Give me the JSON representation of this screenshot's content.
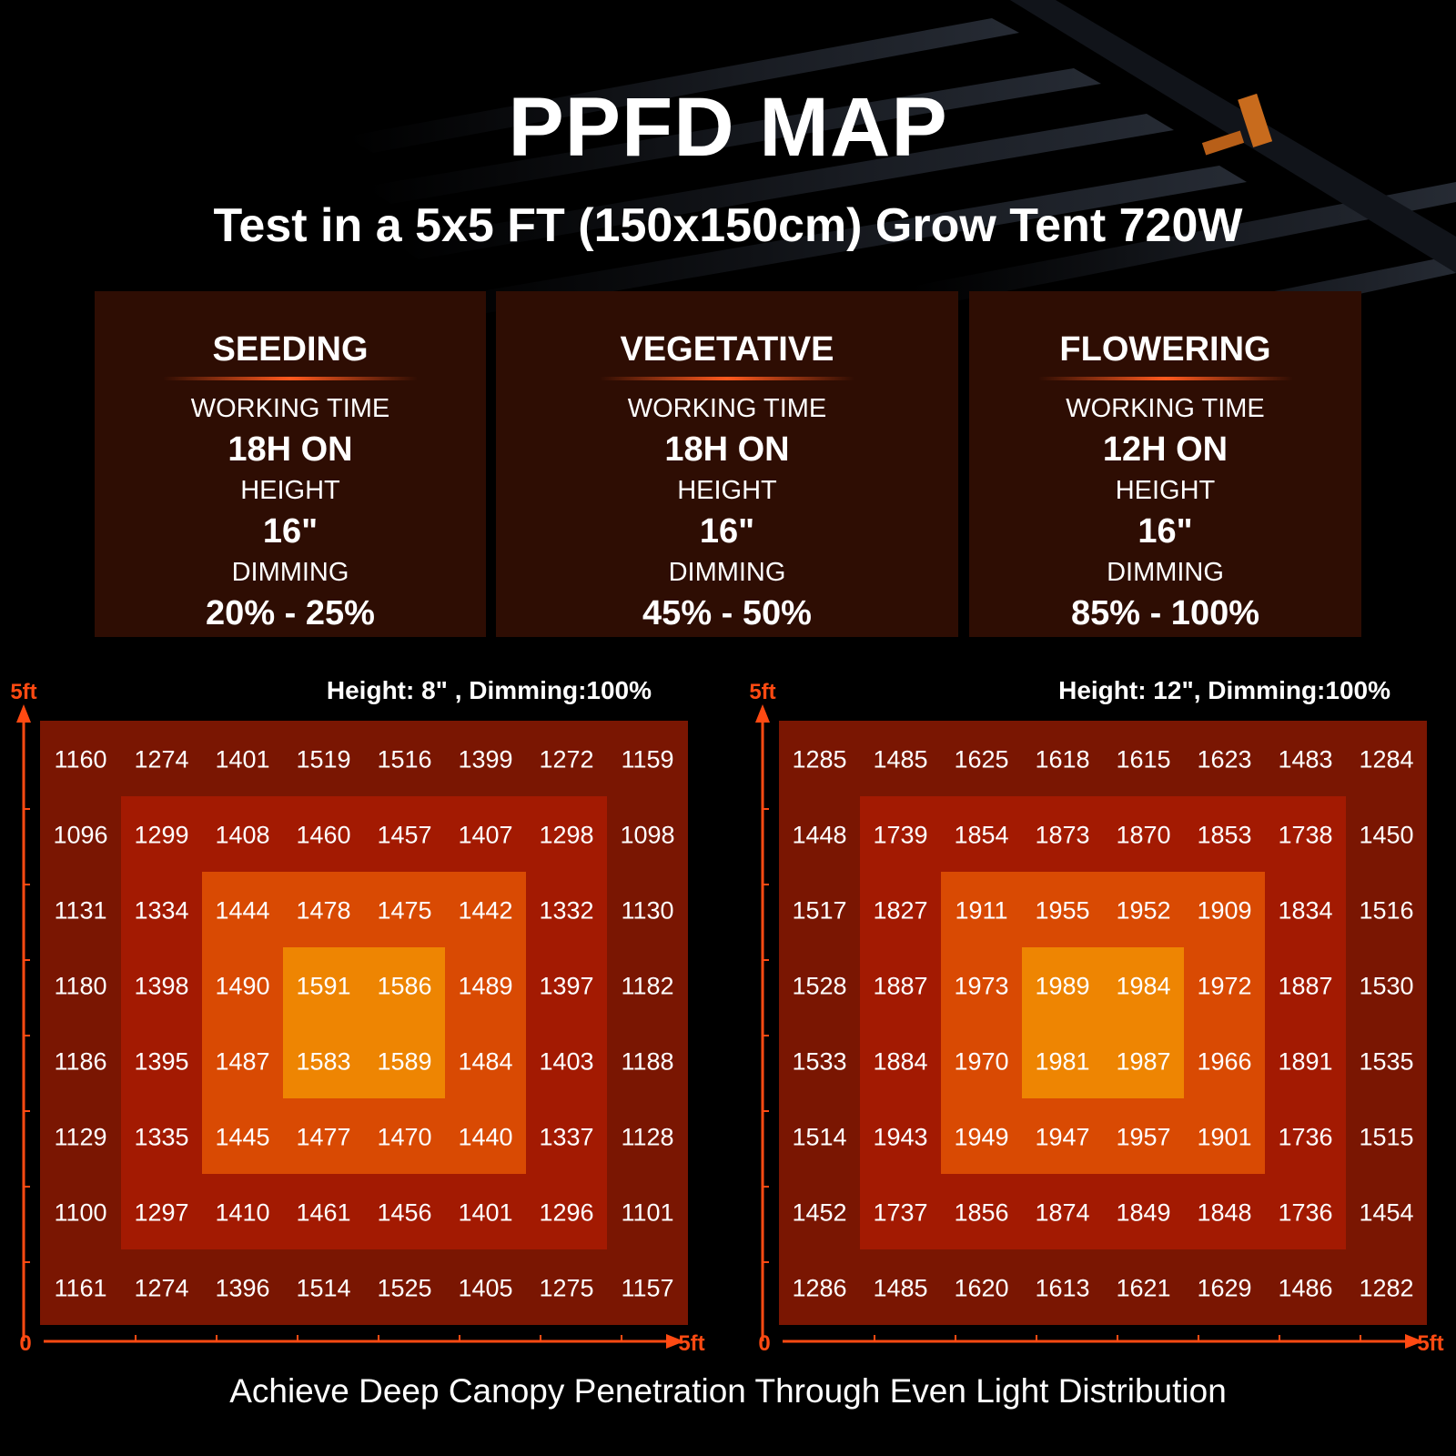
{
  "title": "PPFD MAP",
  "subtitle": "Test in a 5x5 FT (150x150cm) Grow Tent 720W",
  "stages": [
    {
      "name": "SEEDING",
      "working_time_label": "WORKING TIME",
      "working_time": "18H ON",
      "height_label": "HEIGHT",
      "height": "16\"",
      "dimming_label": "DIMMING",
      "dimming": "20% - 25%"
    },
    {
      "name": "VEGETATIVE",
      "working_time_label": "WORKING TIME",
      "working_time": "18H ON",
      "height_label": "HEIGHT",
      "height": "16\"",
      "dimming_label": "DIMMING",
      "dimming": "45% - 50%"
    },
    {
      "name": "FLOWERING",
      "working_time_label": "WORKING TIME",
      "working_time": "12H ON",
      "height_label": "HEIGHT",
      "height": "16\"",
      "dimming_label": "DIMMING",
      "dimming": "85% - 100%"
    }
  ],
  "footer": "Achieve Deep Canopy Penetration Through Even Light Distribution",
  "colors": {
    "ring_outer": "#7a1602",
    "ring_second": "#a31a02",
    "ring_third": "#d94a03",
    "ring_center": "#ee8502",
    "axis": "#ff4a12",
    "panel_bg": "#2e0d03"
  },
  "chart_data": [
    {
      "type": "heatmap",
      "title": "Height: 8\" , Dimming:100%",
      "y_axis_max_label": "5ft",
      "x_axis_max_label": "5ft",
      "origin_label": "0",
      "rows": [
        [
          1160,
          1274,
          1401,
          1519,
          1516,
          1399,
          1272,
          1159
        ],
        [
          1096,
          1299,
          1408,
          1460,
          1457,
          1407,
          1298,
          1098
        ],
        [
          1131,
          1334,
          1444,
          1478,
          1475,
          1442,
          1332,
          1130
        ],
        [
          1180,
          1398,
          1490,
          1591,
          1586,
          1489,
          1397,
          1182
        ],
        [
          1186,
          1395,
          1487,
          1583,
          1589,
          1484,
          1403,
          1188
        ],
        [
          1129,
          1335,
          1445,
          1477,
          1470,
          1440,
          1337,
          1128
        ],
        [
          1100,
          1297,
          1410,
          1461,
          1456,
          1401,
          1296,
          1101
        ],
        [
          1161,
          1274,
          1396,
          1514,
          1525,
          1405,
          1275,
          1157
        ]
      ]
    },
    {
      "type": "heatmap",
      "title": "Height: 12\", Dimming:100%",
      "y_axis_max_label": "5ft",
      "x_axis_max_label": "5ft",
      "origin_label": "0",
      "rows": [
        [
          1285,
          1485,
          1625,
          1618,
          1615,
          1623,
          1483,
          1284
        ],
        [
          1448,
          1739,
          1854,
          1873,
          1870,
          1853,
          1738,
          1450
        ],
        [
          1517,
          1827,
          1911,
          1955,
          1952,
          1909,
          1834,
          1516
        ],
        [
          1528,
          1887,
          1973,
          1989,
          1984,
          1972,
          1887,
          1530
        ],
        [
          1533,
          1884,
          1970,
          1981,
          1987,
          1966,
          1891,
          1535
        ],
        [
          1514,
          1943,
          1949,
          1947,
          1957,
          1901,
          1736,
          1515
        ],
        [
          1452,
          1737,
          1856,
          1874,
          1849,
          1848,
          1736,
          1454
        ],
        [
          1286,
          1485,
          1620,
          1613,
          1621,
          1629,
          1486,
          1282
        ]
      ]
    }
  ]
}
